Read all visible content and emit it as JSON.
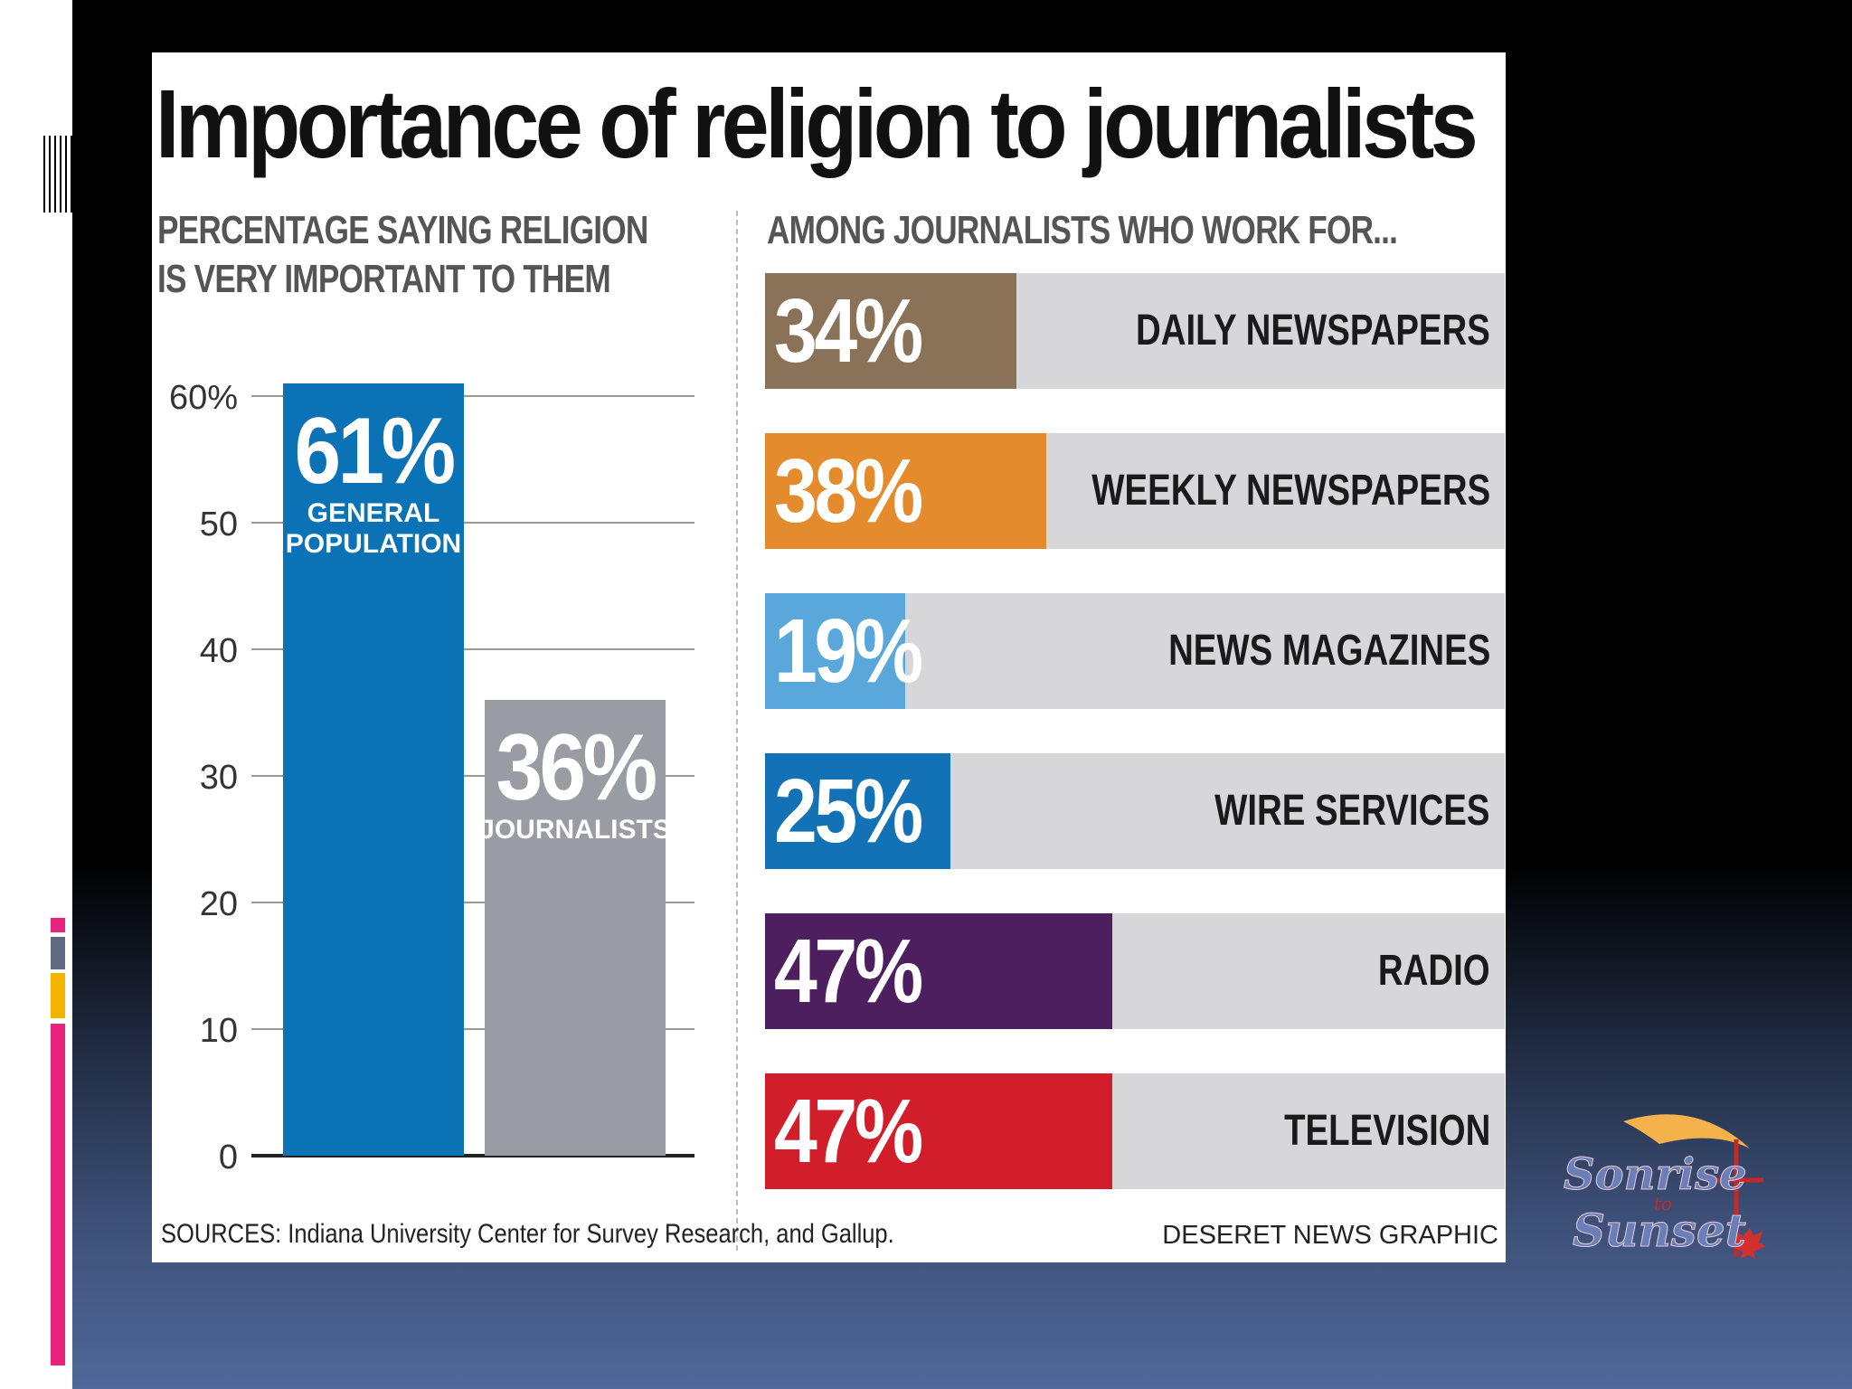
{
  "chart_data": [
    {
      "type": "bar",
      "title": "Importance of religion to journalists",
      "subtitle": "PERCENTAGE SAYING RELIGION IS VERY IMPORTANT TO THEM",
      "categories": [
        "GENERAL POPULATION",
        "JOURNALISTS"
      ],
      "values": [
        61,
        36
      ],
      "value_labels": [
        "61%",
        "36%"
      ],
      "colors": [
        "#0a72b5",
        "#9a9ca4"
      ],
      "ylim": [
        0,
        60
      ],
      "yticks": [
        0,
        10,
        20,
        30,
        40,
        50,
        60
      ],
      "ytick_labels": [
        "0",
        "10",
        "20",
        "30",
        "40",
        "50",
        "60%"
      ],
      "grid": true
    },
    {
      "type": "bar",
      "orientation": "horizontal",
      "subtitle": "AMONG JOURNALISTS WHO WORK FOR...",
      "categories": [
        "DAILY NEWSPAPERS",
        "WEEKLY NEWSPAPERS",
        "NEWS MAGAZINES",
        "WIRE SERVICES",
        "RADIO",
        "TELEVISION"
      ],
      "values": [
        34,
        38,
        19,
        25,
        47,
        47
      ],
      "value_labels": [
        "34%",
        "38%",
        "19%",
        "25%",
        "47%",
        "47%"
      ],
      "colors": [
        "#8a7259",
        "#e38b2d",
        "#5aa7dc",
        "#1272b5",
        "#4e1f5e",
        "#d11e2a"
      ],
      "xlim": [
        0,
        100
      ]
    }
  ],
  "header": {
    "title": "Importance of religion to journalists",
    "left_subhead_line1": "PERCENTAGE SAYING RELIGION",
    "left_subhead_line2": "IS VERY IMPORTANT TO THEM",
    "right_subhead": "AMONG JOURNALISTS WHO WORK FOR..."
  },
  "footer": {
    "sources": "SOURCES: Indiana University Center for Survey Research, and Gallup.",
    "credit": "DESERET NEWS GRAPHIC"
  },
  "logo": {
    "line1": "Sonrise",
    "line2": "to",
    "line3": "Sunset"
  }
}
